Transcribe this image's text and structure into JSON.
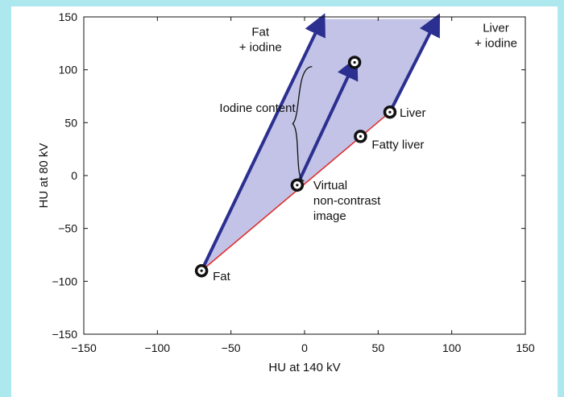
{
  "chart_data": {
    "type": "scatter",
    "xlabel": "HU at 140 kV",
    "ylabel": "HU at 80 kV",
    "xlim": [
      -150,
      150
    ],
    "ylim": [
      -150,
      150
    ],
    "xticks": [
      -150,
      -100,
      -50,
      0,
      50,
      100,
      150
    ],
    "yticks": [
      -150,
      -100,
      -50,
      0,
      50,
      100,
      150
    ],
    "xtick_labels": [
      "−150",
      "−100",
      "−50",
      "0",
      "50",
      "100",
      "150"
    ],
    "ytick_labels": [
      "−150",
      "−100",
      "−50",
      "0",
      "50",
      "100",
      "150"
    ],
    "grid": false,
    "points": [
      {
        "label": "Fat",
        "x": -70,
        "y": -90
      },
      {
        "label": "Liver",
        "x": 58,
        "y": 60
      },
      {
        "label": "Fatty liver",
        "x": 38,
        "y": 37
      },
      {
        "label": "Virtual\nnon-contrast\nimage",
        "x": -5,
        "y": -9
      },
      {
        "label": "",
        "x": 34,
        "y": 107
      }
    ],
    "tissue_line": {
      "x": [
        -70,
        58
      ],
      "y": [
        -90,
        60
      ],
      "color": "#e03030"
    },
    "iodine_vectors": [
      {
        "label": "Fat\n+ iodine",
        "x": [
          -70,
          12
        ],
        "y": [
          -90,
          148
        ]
      },
      {
        "label": "Liver\n+ iodine",
        "x": [
          58,
          90
        ],
        "y": [
          60,
          148
        ]
      },
      {
        "label": "",
        "x": [
          -5,
          34
        ],
        "y": [
          -9,
          107
        ]
      }
    ],
    "shaded_region": {
      "x": [
        -70,
        12,
        90,
        58
      ],
      "y": [
        -90,
        148,
        148,
        60
      ],
      "color": "#bcbde6"
    },
    "annotations": [
      {
        "text": "Iodine content"
      }
    ],
    "colors": {
      "arrow": "#2b2f8f",
      "line": "#e03030",
      "fill": "#bcbde6"
    }
  }
}
